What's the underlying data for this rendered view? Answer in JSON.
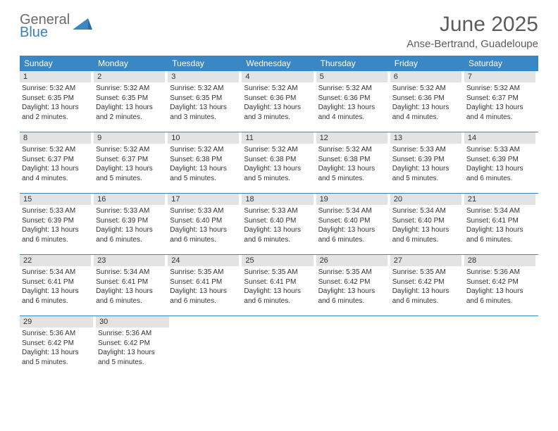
{
  "logo": {
    "gray_text": "General",
    "blue_text": "Blue",
    "shape_color": "#3a87c6"
  },
  "header": {
    "title": "June 2025",
    "location": "Anse-Bertrand, Guadeloupe"
  },
  "weekdays": [
    "Sunday",
    "Monday",
    "Tuesday",
    "Wednesday",
    "Thursday",
    "Friday",
    "Saturday"
  ],
  "colors": {
    "header_bar": "#3a87c6",
    "day_number_bg": "#e3e3e3",
    "week_divider": "#3a87c6",
    "text_dark": "#333333",
    "title_gray": "#5c5c5c",
    "logo_gray": "#6b6b6b",
    "background": "#ffffff"
  },
  "typography": {
    "title_fontsize": 30,
    "location_fontsize": 15,
    "weekday_fontsize": 12,
    "daynum_fontsize": 11,
    "daytext_fontsize": 10
  },
  "days": [
    {
      "n": "1",
      "sunrise": "5:32 AM",
      "sunset": "6:35 PM",
      "daylight": "13 hours and 2 minutes."
    },
    {
      "n": "2",
      "sunrise": "5:32 AM",
      "sunset": "6:35 PM",
      "daylight": "13 hours and 2 minutes."
    },
    {
      "n": "3",
      "sunrise": "5:32 AM",
      "sunset": "6:35 PM",
      "daylight": "13 hours and 3 minutes."
    },
    {
      "n": "4",
      "sunrise": "5:32 AM",
      "sunset": "6:36 PM",
      "daylight": "13 hours and 3 minutes."
    },
    {
      "n": "5",
      "sunrise": "5:32 AM",
      "sunset": "6:36 PM",
      "daylight": "13 hours and 4 minutes."
    },
    {
      "n": "6",
      "sunrise": "5:32 AM",
      "sunset": "6:36 PM",
      "daylight": "13 hours and 4 minutes."
    },
    {
      "n": "7",
      "sunrise": "5:32 AM",
      "sunset": "6:37 PM",
      "daylight": "13 hours and 4 minutes."
    },
    {
      "n": "8",
      "sunrise": "5:32 AM",
      "sunset": "6:37 PM",
      "daylight": "13 hours and 4 minutes."
    },
    {
      "n": "9",
      "sunrise": "5:32 AM",
      "sunset": "6:37 PM",
      "daylight": "13 hours and 5 minutes."
    },
    {
      "n": "10",
      "sunrise": "5:32 AM",
      "sunset": "6:38 PM",
      "daylight": "13 hours and 5 minutes."
    },
    {
      "n": "11",
      "sunrise": "5:32 AM",
      "sunset": "6:38 PM",
      "daylight": "13 hours and 5 minutes."
    },
    {
      "n": "12",
      "sunrise": "5:32 AM",
      "sunset": "6:38 PM",
      "daylight": "13 hours and 5 minutes."
    },
    {
      "n": "13",
      "sunrise": "5:33 AM",
      "sunset": "6:39 PM",
      "daylight": "13 hours and 5 minutes."
    },
    {
      "n": "14",
      "sunrise": "5:33 AM",
      "sunset": "6:39 PM",
      "daylight": "13 hours and 6 minutes."
    },
    {
      "n": "15",
      "sunrise": "5:33 AM",
      "sunset": "6:39 PM",
      "daylight": "13 hours and 6 minutes."
    },
    {
      "n": "16",
      "sunrise": "5:33 AM",
      "sunset": "6:39 PM",
      "daylight": "13 hours and 6 minutes."
    },
    {
      "n": "17",
      "sunrise": "5:33 AM",
      "sunset": "6:40 PM",
      "daylight": "13 hours and 6 minutes."
    },
    {
      "n": "18",
      "sunrise": "5:33 AM",
      "sunset": "6:40 PM",
      "daylight": "13 hours and 6 minutes."
    },
    {
      "n": "19",
      "sunrise": "5:34 AM",
      "sunset": "6:40 PM",
      "daylight": "13 hours and 6 minutes."
    },
    {
      "n": "20",
      "sunrise": "5:34 AM",
      "sunset": "6:40 PM",
      "daylight": "13 hours and 6 minutes."
    },
    {
      "n": "21",
      "sunrise": "5:34 AM",
      "sunset": "6:41 PM",
      "daylight": "13 hours and 6 minutes."
    },
    {
      "n": "22",
      "sunrise": "5:34 AM",
      "sunset": "6:41 PM",
      "daylight": "13 hours and 6 minutes."
    },
    {
      "n": "23",
      "sunrise": "5:34 AM",
      "sunset": "6:41 PM",
      "daylight": "13 hours and 6 minutes."
    },
    {
      "n": "24",
      "sunrise": "5:35 AM",
      "sunset": "6:41 PM",
      "daylight": "13 hours and 6 minutes."
    },
    {
      "n": "25",
      "sunrise": "5:35 AM",
      "sunset": "6:41 PM",
      "daylight": "13 hours and 6 minutes."
    },
    {
      "n": "26",
      "sunrise": "5:35 AM",
      "sunset": "6:42 PM",
      "daylight": "13 hours and 6 minutes."
    },
    {
      "n": "27",
      "sunrise": "5:35 AM",
      "sunset": "6:42 PM",
      "daylight": "13 hours and 6 minutes."
    },
    {
      "n": "28",
      "sunrise": "5:36 AM",
      "sunset": "6:42 PM",
      "daylight": "13 hours and 6 minutes."
    },
    {
      "n": "29",
      "sunrise": "5:36 AM",
      "sunset": "6:42 PM",
      "daylight": "13 hours and 5 minutes."
    },
    {
      "n": "30",
      "sunrise": "5:36 AM",
      "sunset": "6:42 PM",
      "daylight": "13 hours and 5 minutes."
    }
  ],
  "labels": {
    "sunrise": "Sunrise:",
    "sunset": "Sunset:",
    "daylight": "Daylight:"
  },
  "layout": {
    "columns": 7,
    "first_day_column": 0,
    "total_rows": 5
  }
}
